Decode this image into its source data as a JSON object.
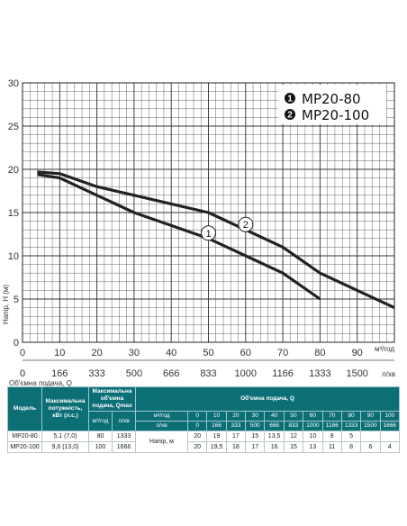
{
  "chart_data": {
    "type": "line",
    "title": "",
    "ylabel": "Напір, Н (м)",
    "xlabel_primary_unit": "м³/год",
    "xlabel_secondary_unit": "л/хв",
    "xlabel_secondary": "Об'ємна подача, Q",
    "ylim": [
      0,
      30
    ],
    "xlim": [
      0,
      100
    ],
    "y_ticks": [
      0,
      5,
      10,
      15,
      20,
      25,
      30
    ],
    "x_ticks": [
      0,
      10,
      20,
      30,
      40,
      50,
      60,
      70,
      80,
      90
    ],
    "x_ticks_lpm": [
      "0",
      "166",
      "333",
      "500",
      "666",
      "833",
      "1000",
      "1166",
      "1333",
      "1500"
    ],
    "grid": true,
    "legend_position": "top-right",
    "series": [
      {
        "name": "MP20-80",
        "marker": "1",
        "color": "#222222",
        "x": [
          4,
          10,
          20,
          30,
          40,
          50,
          60,
          70,
          80
        ],
        "y": [
          19.4,
          19,
          17,
          15,
          13.5,
          12,
          10,
          8,
          5
        ]
      },
      {
        "name": "MP20-100",
        "marker": "2",
        "color": "#222222",
        "x": [
          4,
          10,
          20,
          30,
          40,
          50,
          60,
          70,
          80,
          90,
          100
        ],
        "y": [
          19.7,
          19.5,
          18,
          17,
          16,
          15,
          13,
          11,
          8,
          6,
          4
        ]
      }
    ]
  },
  "legend": {
    "items": [
      {
        "badge": "1",
        "label": "MP20-80"
      },
      {
        "badge": "2",
        "label": "MP20-100"
      }
    ]
  },
  "table": {
    "h_model": "Модель",
    "h_power": "Максимальна потужність, кВт (л.с.)",
    "h_qmax": "Максимальна об'ємна подача, Qmax",
    "h_flow": "Об'ємна подача, Q",
    "u_m3h": "м³/год",
    "u_lpm": "л/хв",
    "h_head": "Напір, м",
    "flow_m3h": [
      "0",
      "10",
      "20",
      "30",
      "40",
      "50",
      "60",
      "70",
      "80",
      "90",
      "100"
    ],
    "flow_lpm": [
      "0",
      "166",
      "333",
      "500",
      "666",
      "833",
      "1000",
      "1166",
      "1333",
      "1500",
      "1666"
    ],
    "rows": [
      {
        "model": "MP20-80",
        "power": "5,1 (7,0)",
        "qmax_m3h": "80",
        "qmax_lpm": "1333",
        "head": [
          "20",
          "19",
          "17",
          "15",
          "13,5",
          "12",
          "10",
          "8",
          "5",
          "",
          ""
        ]
      },
      {
        "model": "MP20-100",
        "power": "9,6 (13,0)",
        "qmax_m3h": "100",
        "qmax_lpm": "1666",
        "head": [
          "20",
          "19,5",
          "18",
          "17",
          "16",
          "15",
          "13",
          "11",
          "8",
          "6",
          "4"
        ]
      }
    ]
  }
}
